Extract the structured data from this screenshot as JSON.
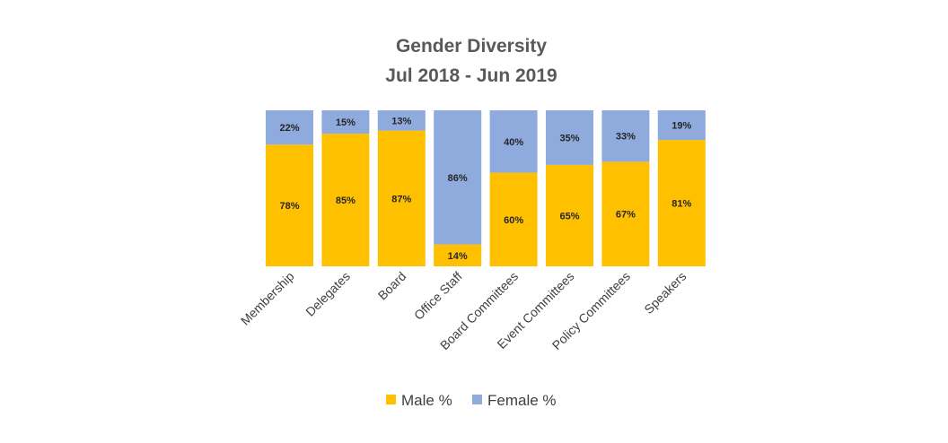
{
  "chart_data": {
    "type": "bar",
    "stacked": true,
    "title": [
      "Gender Diversity",
      "Jul 2018 - Jun 2019"
    ],
    "categories": [
      "Membership",
      "Delegates",
      "Board",
      "Office Staff",
      "Board Committees",
      "Event Committees",
      "Policy Committees",
      "Speakers"
    ],
    "series": [
      {
        "name": "Male %",
        "color": "#FFC000",
        "values": [
          78,
          85,
          87,
          14,
          60,
          65,
          67,
          81
        ]
      },
      {
        "name": "Female %",
        "color": "#8FAADC",
        "values": [
          22,
          15,
          13,
          86,
          40,
          35,
          33,
          19
        ]
      }
    ],
    "ylim": [
      0,
      100
    ],
    "value_suffix": "%",
    "legend_position": "bottom",
    "grid": false
  }
}
